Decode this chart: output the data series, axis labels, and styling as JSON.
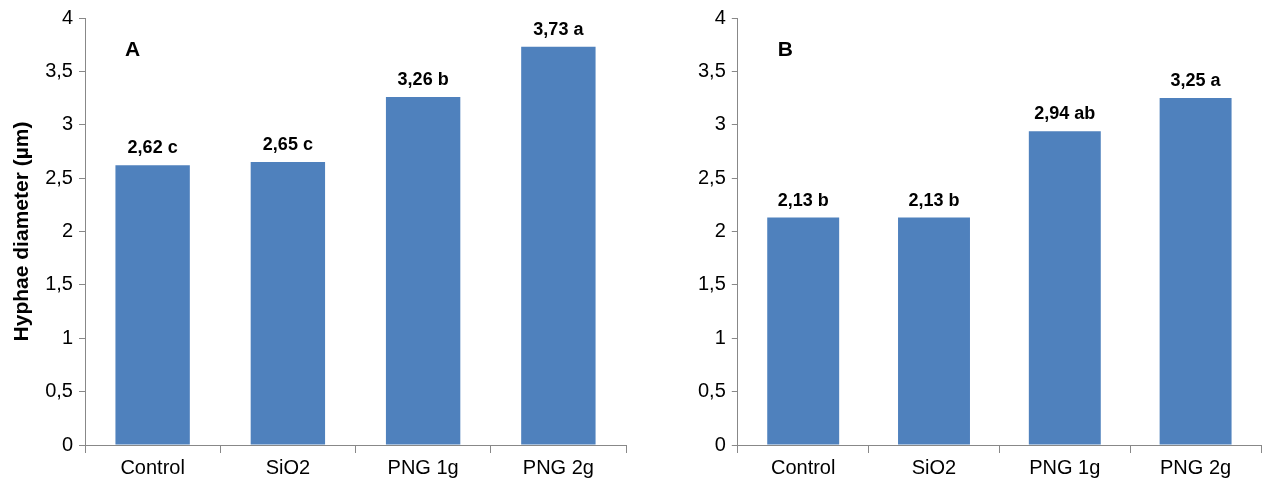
{
  "chart_data": [
    {
      "type": "bar",
      "title": "A",
      "ylabel": "Hyphae diameter (µm)",
      "categories": [
        "Control",
        "SiO2",
        "PNG 1g",
        "PNG 2g"
      ],
      "values": [
        2.62,
        2.65,
        3.26,
        3.73
      ],
      "color": "#4f81bd",
      "value_labels": [
        "2,62 c",
        "2,65 c",
        "3,26 b",
        "3,73 a"
      ],
      "ylim": [
        0,
        4
      ],
      "yticks": [
        0,
        {
          "value": 0.5,
          "label": "0,5"
        },
        1,
        {
          "value": 1.5,
          "label": "1,5"
        },
        2,
        {
          "value": 2.5,
          "label": "2,5"
        },
        3,
        {
          "value": 3.5,
          "label": "3,5"
        },
        4
      ],
      "grid": false,
      "legend": false
    },
    {
      "type": "bar",
      "title": "B",
      "categories": [
        "Control",
        "SiO2",
        "PNG 1g",
        "PNG 2g"
      ],
      "values": [
        2.13,
        2.13,
        2.94,
        3.25
      ],
      "color": "#4f81bd",
      "value_labels": [
        "2,13 b",
        "2,13 b",
        "2,94 ab",
        "3,25 a"
      ],
      "ylim": [
        0,
        4
      ],
      "yticks": [
        0,
        {
          "value": 0.5,
          "label": "0,5"
        },
        1,
        {
          "value": 1.5,
          "label": "1,5"
        },
        2,
        {
          "value": 2.5,
          "label": "2,5"
        },
        3,
        {
          "value": 3.5,
          "label": "3,5"
        },
        4
      ],
      "grid": false,
      "legend": false
    }
  ]
}
